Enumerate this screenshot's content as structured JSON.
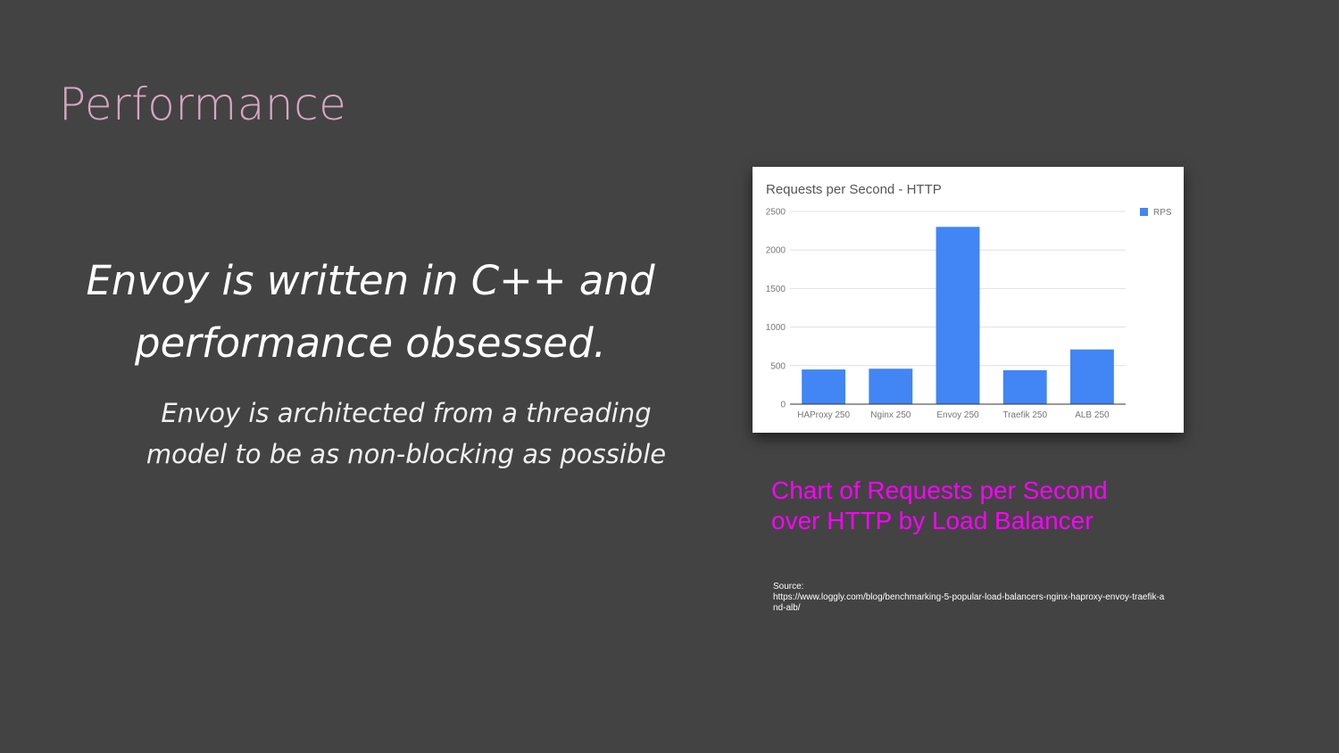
{
  "slide": {
    "title": "Performance",
    "headline_line1": "Envoy is written in C++ and",
    "headline_line2": "performance obsessed.",
    "subline_line1": "Envoy is architected from a threading",
    "subline_line2": "model to be as non-blocking as possible",
    "caption_line1": "Chart of Requests per Second",
    "caption_line2": "over HTTP by Load Balancer",
    "source_label": "Source:",
    "source_url": "https://www.loggly.com/blog/benchmarking-5-popular-load-balancers-nginx-haproxy-envoy-traefik-and-alb/"
  },
  "chart_data": {
    "type": "bar",
    "title": "Requests per Second - HTTP",
    "categories": [
      "HAProxy 250",
      "Nginx 250",
      "Envoy 250",
      "Traefik 250",
      "ALB 250"
    ],
    "series": [
      {
        "name": "RPS",
        "values": [
          450,
          460,
          2300,
          440,
          710
        ]
      }
    ],
    "ylim": [
      0,
      2500
    ],
    "yticks": [
      0,
      500,
      1000,
      1500,
      2000,
      2500
    ],
    "grid": true,
    "legend": "top-right",
    "colors": {
      "bar": "#4285f4",
      "grid": "#e0e0e0",
      "axis": "#333333",
      "text": "#757575"
    }
  }
}
